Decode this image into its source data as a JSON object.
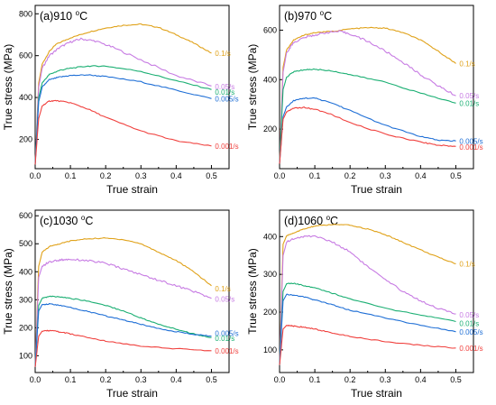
{
  "colors": {
    "0.1/s": "#E0A21A",
    "0.05/s": "#C77BE3",
    "0.01/s": "#1BAF73",
    "0.005/s": "#1F6FD6",
    "0.001/s": "#F0413E"
  },
  "chart_data": [
    {
      "type": "line",
      "panel": "(a)",
      "title_prefix": "(a)",
      "temperature": "910",
      "temp_unit": "C",
      "xlabel": "True strain",
      "ylabel": "True stress (MPa)",
      "xlim": [
        0,
        0.55
      ],
      "ylim": [
        60,
        840
      ],
      "xticks": [
        "0.0",
        "0.1",
        "0.2",
        "0.3",
        "0.4",
        "0.5"
      ],
      "yticks": [
        "200",
        "400",
        "600",
        "800"
      ],
      "series": [
        {
          "name": "0.1/s",
          "x": [
            0,
            0.01,
            0.02,
            0.04,
            0.06,
            0.1,
            0.15,
            0.2,
            0.25,
            0.3,
            0.35,
            0.4,
            0.45,
            0.5
          ],
          "y": [
            80,
            470,
            560,
            620,
            655,
            685,
            712,
            732,
            745,
            750,
            735,
            700,
            660,
            612
          ]
        },
        {
          "name": "0.05/s",
          "x": [
            0,
            0.01,
            0.02,
            0.04,
            0.07,
            0.1,
            0.13,
            0.17,
            0.22,
            0.3,
            0.4,
            0.5
          ],
          "y": [
            80,
            450,
            540,
            600,
            640,
            665,
            680,
            670,
            640,
            580,
            505,
            455
          ]
        },
        {
          "name": "0.01/s",
          "x": [
            0,
            0.01,
            0.02,
            0.04,
            0.07,
            0.1,
            0.15,
            0.2,
            0.3,
            0.4,
            0.5
          ],
          "y": [
            80,
            400,
            470,
            510,
            530,
            540,
            550,
            550,
            525,
            480,
            438
          ]
        },
        {
          "name": "0.005/s",
          "x": [
            0,
            0.01,
            0.02,
            0.04,
            0.07,
            0.1,
            0.15,
            0.2,
            0.3,
            0.4,
            0.5
          ],
          "y": [
            80,
            380,
            450,
            485,
            498,
            505,
            508,
            500,
            475,
            435,
            395
          ]
        },
        {
          "name": "0.001/s",
          "x": [
            0,
            0.01,
            0.02,
            0.04,
            0.06,
            0.1,
            0.15,
            0.2,
            0.3,
            0.4,
            0.5
          ],
          "y": [
            80,
            300,
            360,
            383,
            385,
            375,
            345,
            305,
            240,
            193,
            168
          ]
        }
      ],
      "labels": [
        {
          "text": "0.1/s",
          "x": 0.505,
          "y": 612
        },
        {
          "text": "0.05/s",
          "x": 0.505,
          "y": 452
        },
        {
          "text": "0.01/s",
          "x": 0.505,
          "y": 427
        },
        {
          "text": "0.005/s",
          "x": 0.505,
          "y": 395
        },
        {
          "text": "0.001/s",
          "x": 0.505,
          "y": 168
        }
      ]
    },
    {
      "type": "line",
      "panel": "(b)",
      "title_prefix": "(b)",
      "temperature": "970",
      "temp_unit": "C",
      "xlabel": "True strain",
      "ylabel": "True stress (MPa)",
      "xlim": [
        0,
        0.55
      ],
      "ylim": [
        40,
        700
      ],
      "xticks": [
        "0.0",
        "0.1",
        "0.2",
        "0.3",
        "0.4",
        "0.5"
      ],
      "yticks": [
        "200",
        "400",
        "600"
      ],
      "series": [
        {
          "name": "0.1/s",
          "x": [
            0,
            0.01,
            0.02,
            0.04,
            0.07,
            0.1,
            0.15,
            0.2,
            0.25,
            0.3,
            0.35,
            0.4,
            0.45,
            0.5
          ],
          "y": [
            60,
            450,
            520,
            560,
            580,
            590,
            595,
            605,
            610,
            608,
            590,
            560,
            515,
            465
          ]
        },
        {
          "name": "0.05/s",
          "x": [
            0,
            0.01,
            0.02,
            0.04,
            0.07,
            0.1,
            0.13,
            0.17,
            0.2,
            0.25,
            0.3,
            0.35,
            0.4,
            0.45,
            0.5
          ],
          "y": [
            60,
            430,
            510,
            550,
            570,
            580,
            590,
            595,
            585,
            555,
            515,
            470,
            420,
            375,
            335
          ]
        },
        {
          "name": "0.01/s",
          "x": [
            0,
            0.01,
            0.02,
            0.04,
            0.07,
            0.1,
            0.15,
            0.2,
            0.3,
            0.4,
            0.5
          ],
          "y": [
            60,
            360,
            410,
            432,
            440,
            442,
            435,
            420,
            390,
            345,
            305
          ]
        },
        {
          "name": "0.005/s",
          "x": [
            0,
            0.01,
            0.02,
            0.04,
            0.07,
            0.1,
            0.15,
            0.2,
            0.3,
            0.4,
            0.45,
            0.5
          ],
          "y": [
            60,
            250,
            290,
            315,
            325,
            325,
            305,
            275,
            215,
            170,
            155,
            152
          ]
        },
        {
          "name": "0.001/s",
          "x": [
            0,
            0.01,
            0.02,
            0.04,
            0.07,
            0.1,
            0.15,
            0.2,
            0.3,
            0.4,
            0.45,
            0.5
          ],
          "y": [
            60,
            240,
            270,
            285,
            287,
            280,
            258,
            225,
            180,
            148,
            135,
            130
          ]
        }
      ],
      "labels": [
        {
          "text": "0.1/s",
          "x": 0.505,
          "y": 465
        },
        {
          "text": "0.05/s",
          "x": 0.505,
          "y": 335
        },
        {
          "text": "0.01/s",
          "x": 0.505,
          "y": 305
        },
        {
          "text": "0.005/s",
          "x": 0.505,
          "y": 152
        },
        {
          "text": "0.001/s",
          "x": 0.505,
          "y": 128
        }
      ]
    },
    {
      "type": "line",
      "panel": "(c)",
      "title_prefix": "(c)",
      "temperature": "1030",
      "temp_unit": "C",
      "xlabel": "True strain",
      "ylabel": "True stress (MPa)",
      "xlim": [
        0,
        0.55
      ],
      "ylim": [
        40,
        620
      ],
      "xticks": [
        "0.0",
        "0.1",
        "0.2",
        "0.3",
        "0.4",
        "0.5"
      ],
      "yticks": [
        "100",
        "200",
        "300",
        "400",
        "500",
        "600"
      ],
      "series": [
        {
          "name": "0.1/s",
          "x": [
            0,
            0.01,
            0.02,
            0.04,
            0.07,
            0.1,
            0.15,
            0.2,
            0.25,
            0.3,
            0.35,
            0.4,
            0.45,
            0.5
          ],
          "y": [
            60,
            420,
            470,
            490,
            500,
            510,
            518,
            520,
            515,
            500,
            470,
            440,
            400,
            350
          ]
        },
        {
          "name": "0.05/s",
          "x": [
            0,
            0.01,
            0.02,
            0.04,
            0.07,
            0.1,
            0.15,
            0.2,
            0.25,
            0.3,
            0.35,
            0.4,
            0.45,
            0.5
          ],
          "y": [
            60,
            380,
            420,
            435,
            442,
            445,
            440,
            430,
            410,
            390,
            370,
            350,
            330,
            305
          ]
        },
        {
          "name": "0.01/s",
          "x": [
            0,
            0.01,
            0.02,
            0.04,
            0.07,
            0.1,
            0.15,
            0.2,
            0.25,
            0.3,
            0.35,
            0.4,
            0.45,
            0.5
          ],
          "y": [
            60,
            280,
            305,
            312,
            310,
            305,
            295,
            280,
            260,
            235,
            212,
            195,
            178,
            165
          ]
        },
        {
          "name": "0.005/s",
          "x": [
            0,
            0.01,
            0.02,
            0.04,
            0.07,
            0.1,
            0.15,
            0.2,
            0.25,
            0.3,
            0.35,
            0.4,
            0.45,
            0.5
          ],
          "y": [
            60,
            260,
            283,
            285,
            280,
            272,
            258,
            242,
            228,
            212,
            198,
            186,
            176,
            170
          ]
        },
        {
          "name": "0.001/s",
          "x": [
            0,
            0.01,
            0.02,
            0.04,
            0.07,
            0.1,
            0.15,
            0.2,
            0.3,
            0.4,
            0.5
          ],
          "y": [
            60,
            170,
            188,
            190,
            185,
            178,
            165,
            152,
            135,
            125,
            118
          ]
        }
      ],
      "labels": [
        {
          "text": "0.1/s",
          "x": 0.505,
          "y": 340
        },
        {
          "text": "0.05/s",
          "x": 0.505,
          "y": 302
        },
        {
          "text": "0.005/s",
          "x": 0.505,
          "y": 180
        },
        {
          "text": "0.01/s",
          "x": 0.505,
          "y": 162
        },
        {
          "text": "0.001/s",
          "x": 0.505,
          "y": 118
        }
      ]
    },
    {
      "type": "line",
      "panel": "(d)",
      "title_prefix": "(d)",
      "temperature": "1060",
      "temp_unit": "C",
      "xlabel": "True strain",
      "ylabel": "True stress (MPa)",
      "xlim": [
        0,
        0.55
      ],
      "ylim": [
        40,
        470
      ],
      "xticks": [
        "0.0",
        "0.1",
        "0.2",
        "0.3",
        "0.4",
        "0.5"
      ],
      "yticks": [
        "100",
        "200",
        "300",
        "400"
      ],
      "series": [
        {
          "name": "0.1/s",
          "x": [
            0,
            0.01,
            0.02,
            0.04,
            0.07,
            0.1,
            0.15,
            0.2,
            0.25,
            0.3,
            0.35,
            0.4,
            0.45,
            0.5
          ],
          "y": [
            60,
            380,
            402,
            410,
            420,
            428,
            432,
            430,
            420,
            405,
            385,
            365,
            345,
            328
          ]
        },
        {
          "name": "0.05/s",
          "x": [
            0,
            0.01,
            0.02,
            0.04,
            0.07,
            0.1,
            0.15,
            0.2,
            0.25,
            0.3,
            0.35,
            0.4,
            0.45,
            0.5
          ],
          "y": [
            60,
            350,
            385,
            395,
            400,
            402,
            385,
            360,
            320,
            285,
            255,
            230,
            210,
            195
          ]
        },
        {
          "name": "0.01/s",
          "x": [
            0,
            0.01,
            0.02,
            0.04,
            0.07,
            0.1,
            0.15,
            0.2,
            0.3,
            0.4,
            0.5
          ],
          "y": [
            60,
            255,
            275,
            276,
            270,
            265,
            250,
            235,
            210,
            192,
            175
          ]
        },
        {
          "name": "0.005/s",
          "x": [
            0,
            0.01,
            0.02,
            0.04,
            0.07,
            0.1,
            0.15,
            0.2,
            0.3,
            0.4,
            0.5
          ],
          "y": [
            60,
            230,
            247,
            245,
            240,
            232,
            220,
            205,
            185,
            165,
            148
          ]
        },
        {
          "name": "0.001/s",
          "x": [
            0,
            0.01,
            0.02,
            0.04,
            0.07,
            0.1,
            0.15,
            0.2,
            0.3,
            0.4,
            0.5
          ],
          "y": [
            60,
            155,
            165,
            163,
            160,
            155,
            145,
            135,
            122,
            112,
            105
          ]
        }
      ],
      "labels": [
        {
          "text": "0.1/s",
          "x": 0.505,
          "y": 328
        },
        {
          "text": "0.05/s",
          "x": 0.505,
          "y": 193
        },
        {
          "text": "0.01/s",
          "x": 0.505,
          "y": 170
        },
        {
          "text": "0.005/s",
          "x": 0.505,
          "y": 148
        },
        {
          "text": "0.001/s",
          "x": 0.505,
          "y": 105
        }
      ]
    }
  ]
}
